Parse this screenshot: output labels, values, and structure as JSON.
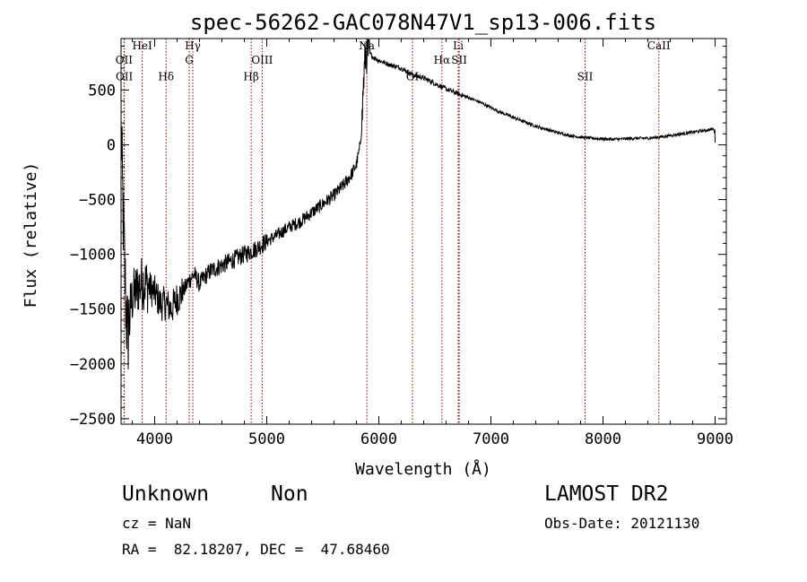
{
  "chart_data": {
    "type": "line",
    "title": "spec-56262-GAC078N47V1_sp13-006.fits",
    "xlabel": "Wavelength (Å)",
    "ylabel": "Flux (relative)",
    "xlim": [
      3700,
      9100
    ],
    "ylim": [
      -2550,
      970
    ],
    "xticks": [
      {
        "value": 4000,
        "label": "4000"
      },
      {
        "value": 5000,
        "label": "5000"
      },
      {
        "value": 6000,
        "label": "6000"
      },
      {
        "value": 7000,
        "label": "7000"
      },
      {
        "value": 8000,
        "label": "8000"
      },
      {
        "value": 9000,
        "label": "9000"
      }
    ],
    "yticks": [
      {
        "value": -2500,
        "label": "−2500"
      },
      {
        "value": -2000,
        "label": "−2000"
      },
      {
        "value": -1500,
        "label": "−1500"
      },
      {
        "value": -1000,
        "label": "−1000"
      },
      {
        "value": -500,
        "label": "−500"
      },
      {
        "value": 0,
        "label": "0"
      },
      {
        "value": 500,
        "label": "500"
      }
    ],
    "grid": false,
    "line_color": "#000000",
    "marker_color": "#8b0000",
    "spectral_lines": [
      {
        "name": "OII",
        "wavelength": 3727,
        "label_flux": 740
      },
      {
        "name": "OII",
        "wavelength": 3729,
        "label_flux": 590
      },
      {
        "name": "HeI",
        "wavelength": 3889,
        "label_flux": 870
      },
      {
        "name": "Hδ",
        "wavelength": 4102,
        "label_flux": 590
      },
      {
        "name": "Hγ",
        "wavelength": 4340,
        "label_flux": 870
      },
      {
        "name": "G",
        "wavelength": 4308,
        "label_flux": 740
      },
      {
        "name": "Hβ",
        "wavelength": 4861,
        "label_flux": 590
      },
      {
        "name": "OIII",
        "wavelength": 4959,
        "label_flux": 740
      },
      {
        "name": "Na",
        "wavelength": 5893,
        "label_flux": 870
      },
      {
        "name": "OI",
        "wavelength": 6300,
        "label_flux": 590
      },
      {
        "name": "Hα",
        "wavelength": 6563,
        "label_flux": 740
      },
      {
        "name": "SII",
        "wavelength": 6717,
        "label_flux": 740
      },
      {
        "name": "Li",
        "wavelength": 6708,
        "label_flux": 870
      },
      {
        "name": "SII",
        "wavelength": 7840,
        "label_flux": 590
      },
      {
        "name": "CaII",
        "wavelength": 8498,
        "label_flux": 870
      }
    ],
    "spectrum_anchors": [
      [
        3700,
        120
      ],
      [
        3705,
        -20
      ],
      [
        3710,
        -300
      ],
      [
        3720,
        -700
      ],
      [
        3730,
        -1050
      ],
      [
        3745,
        -1500
      ],
      [
        3760,
        -1750
      ],
      [
        3780,
        -1500
      ],
      [
        3800,
        -1400
      ],
      [
        3850,
        -1300
      ],
      [
        3900,
        -1250
      ],
      [
        3950,
        -1300
      ],
      [
        4000,
        -1350
      ],
      [
        4050,
        -1450
      ],
      [
        4100,
        -1450
      ],
      [
        4150,
        -1500
      ],
      [
        4200,
        -1400
      ],
      [
        4250,
        -1350
      ],
      [
        4300,
        -1250
      ],
      [
        4350,
        -1180
      ],
      [
        4400,
        -1270
      ],
      [
        4450,
        -1200
      ],
      [
        4500,
        -1150
      ],
      [
        4600,
        -1100
      ],
      [
        4700,
        -1050
      ],
      [
        4800,
        -1000
      ],
      [
        4900,
        -950
      ],
      [
        5000,
        -880
      ],
      [
        5100,
        -820
      ],
      [
        5200,
        -750
      ],
      [
        5300,
        -700
      ],
      [
        5400,
        -620
      ],
      [
        5500,
        -540
      ],
      [
        5600,
        -460
      ],
      [
        5700,
        -350
      ],
      [
        5750,
        -280
      ],
      [
        5800,
        -180
      ],
      [
        5830,
        -30
      ],
      [
        5850,
        200
      ],
      [
        5860,
        500
      ],
      [
        5880,
        820
      ],
      [
        5900,
        850
      ],
      [
        5950,
        800
      ],
      [
        6000,
        770
      ],
      [
        6100,
        730
      ],
      [
        6200,
        700
      ],
      [
        6300,
        640
      ],
      [
        6400,
        610
      ],
      [
        6500,
        560
      ],
      [
        6600,
        510
      ],
      [
        6700,
        470
      ],
      [
        6800,
        430
      ],
      [
        6900,
        390
      ],
      [
        7000,
        340
      ],
      [
        7100,
        290
      ],
      [
        7200,
        250
      ],
      [
        7300,
        210
      ],
      [
        7400,
        170
      ],
      [
        7500,
        140
      ],
      [
        7600,
        110
      ],
      [
        7700,
        85
      ],
      [
        7800,
        70
      ],
      [
        7900,
        60
      ],
      [
        8000,
        55
      ],
      [
        8100,
        50
      ],
      [
        8200,
        55
      ],
      [
        8300,
        60
      ],
      [
        8400,
        60
      ],
      [
        8500,
        70
      ],
      [
        8600,
        85
      ],
      [
        8700,
        100
      ],
      [
        8800,
        115
      ],
      [
        8900,
        130
      ],
      [
        8960,
        140
      ],
      [
        8990,
        145
      ],
      [
        9000,
        25
      ]
    ]
  },
  "info": {
    "object_class": "Unknown",
    "subclass": "Non",
    "survey": "LAMOST DR2",
    "cz_text": "cz = NaN",
    "obs_date_text": "Obs-Date: 20121130",
    "coords_text": "RA =  82.18207, DEC =  47.68460"
  }
}
